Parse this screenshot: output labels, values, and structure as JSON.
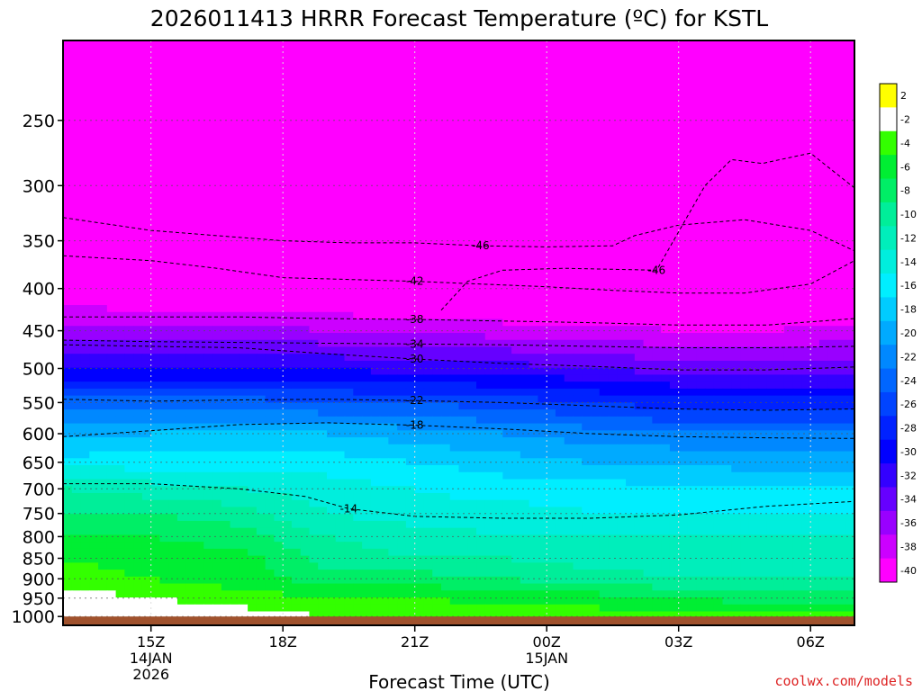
{
  "chart_data": {
    "type": "heatmap",
    "title": "2026011413 HRRR Forecast Temperature (ºC) for KSTL",
    "xlabel": "Forecast Time (UTC)",
    "ylabel": "",
    "credit": "coolwx.com/models",
    "x_ticks": [
      {
        "label": "15Z",
        "sub": [
          "14JAN",
          "2026"
        ]
      },
      {
        "label": "18Z",
        "sub": []
      },
      {
        "label": "21Z",
        "sub": []
      },
      {
        "label": "00Z",
        "sub": [
          "15JAN"
        ]
      },
      {
        "label": "03Z",
        "sub": []
      },
      {
        "label": "06Z",
        "sub": []
      }
    ],
    "x_range_hours": [
      13,
      31
    ],
    "x_tick_hours": [
      15,
      18,
      21,
      24,
      27,
      30
    ],
    "y_ticks": [
      250,
      300,
      350,
      400,
      450,
      500,
      550,
      600,
      650,
      700,
      750,
      800,
      850,
      900,
      950,
      1000
    ],
    "y_range_hpa": [
      200,
      1025
    ],
    "y_scale": "log-pressure",
    "grid": true,
    "colorbar": {
      "labels": [
        "2",
        "-2",
        "-4",
        "-6",
        "-8",
        "-10",
        "-12",
        "-14",
        "-16",
        "-18",
        "-20",
        "-22",
        "-24",
        "-26",
        "-28",
        "-30",
        "-32",
        "-34",
        "-36",
        "-38",
        "-40"
      ],
      "colors": [
        "#ffff00",
        "#ffffff",
        "#33ff00",
        "#00ee33",
        "#00ee66",
        "#00ee99",
        "#00eebb",
        "#00eedd",
        "#00eeff",
        "#00ccff",
        "#00aaff",
        "#0088ff",
        "#0066ff",
        "#0044ff",
        "#0022ff",
        "#0000ff",
        "#3300ff",
        "#6600ff",
        "#9900ff",
        "#cc00ff",
        "#ff00ff"
      ]
    },
    "temperature_levels_hpa": [
      250,
      300,
      350,
      400,
      450,
      500,
      550,
      600,
      650,
      700,
      750,
      800,
      850,
      900,
      950,
      1000
    ],
    "temperature_hours": [
      13,
      15,
      17,
      19,
      21,
      23,
      25,
      27,
      29,
      31
    ],
    "temperature_c": [
      [
        -50,
        -50,
        -51,
        -50,
        -50,
        -49,
        -48,
        -47,
        -47,
        -48
      ],
      [
        -50,
        -49,
        -49,
        -49,
        -48,
        -48,
        -47,
        -45,
        -45,
        -46
      ],
      [
        -45,
        -45,
        -45,
        -46,
        -46,
        -46,
        -47,
        -47,
        -47,
        -46
      ],
      [
        -40,
        -41,
        -41,
        -41,
        -42,
        -42,
        -43,
        -43,
        -43,
        -42
      ],
      [
        -35,
        -35,
        -35,
        -36,
        -36,
        -37,
        -37,
        -38,
        -38,
        -37
      ],
      [
        -30,
        -30,
        -30,
        -30,
        -31,
        -31,
        -32,
        -33,
        -33,
        -33
      ],
      [
        -23,
        -23,
        -23,
        -24,
        -24,
        -25,
        -26,
        -27,
        -27,
        -27
      ],
      [
        -19,
        -18,
        -18,
        -18,
        -19,
        -20,
        -21,
        -22,
        -22,
        -22
      ],
      [
        -15,
        -15,
        -15,
        -15,
        -16,
        -17,
        -18,
        -18,
        -19,
        -19
      ],
      [
        -10,
        -11,
        -12,
        -13,
        -14,
        -15,
        -15,
        -16,
        -16,
        -16
      ],
      [
        -8,
        -8,
        -9,
        -12,
        -13,
        -13,
        -14,
        -14,
        -14,
        -14
      ],
      [
        -6,
        -6,
        -7,
        -10,
        -11,
        -12,
        -12,
        -12,
        -12,
        -12
      ],
      [
        -4,
        -5,
        -5,
        -9,
        -10,
        -10,
        -11,
        -11,
        -11,
        -11
      ],
      [
        -3,
        -4,
        -5,
        -7,
        -7,
        -8,
        -9,
        -10,
        -10,
        -10
      ],
      [
        -1,
        -2,
        -3,
        -4,
        -4,
        -5,
        -5,
        -6,
        -7,
        -7
      ],
      [
        2,
        0,
        -1,
        -2,
        -2,
        -2,
        -3,
        -3,
        -3,
        -3
      ]
    ],
    "contour_labels": [
      "-46",
      "-46",
      "-42",
      "-38",
      "-34",
      "-30",
      "-22",
      "-18",
      "-14"
    ],
    "contour_lines": [
      {
        "value": -46,
        "label_index": 0,
        "hours": [
          21.6,
          22.2,
          23.0,
          24.4,
          26.5,
          27.6,
          28.2,
          28.9,
          30.0,
          31.0
        ],
        "hpa": [
          425,
          392,
          380,
          378,
          380,
          300,
          279,
          282,
          274,
          302
        ]
      },
      {
        "value": -46,
        "label_index": 1,
        "hours": [
          13,
          15,
          16.5,
          18,
          19.5,
          21,
          22.5,
          24,
          25.5,
          26,
          27,
          28.5,
          30,
          31
        ],
        "hpa": [
          328,
          340,
          345,
          350,
          352,
          352,
          355,
          356,
          355,
          345,
          335,
          330,
          340,
          360
        ]
      },
      {
        "value": -42,
        "label_index": 2,
        "hours": [
          13,
          15,
          16.5,
          18,
          19.5,
          21,
          22.5,
          24,
          25.5,
          27,
          28.5,
          30,
          31
        ],
        "hpa": [
          365,
          370,
          378,
          388,
          390,
          392,
          395,
          398,
          402,
          405,
          405,
          395,
          370
        ]
      },
      {
        "value": -38,
        "label_index": 3,
        "hours": [
          13,
          15,
          17,
          19,
          21,
          23,
          25,
          27,
          29,
          31
        ],
        "hpa": [
          433,
          433,
          433,
          435,
          436,
          438,
          440,
          443,
          443,
          435
        ]
      },
      {
        "value": -34,
        "label_index": 4,
        "hours": [
          13,
          15,
          17,
          19,
          21,
          23,
          25,
          27,
          29,
          31
        ],
        "hpa": [
          462,
          464,
          465,
          466,
          467,
          468,
          470,
          472,
          472,
          470
        ]
      },
      {
        "value": -30,
        "label_index": 5,
        "hours": [
          13,
          15,
          17,
          19,
          21,
          23,
          25,
          27,
          29,
          31
        ],
        "hpa": [
          468,
          470,
          472,
          480,
          487,
          493,
          497,
          502,
          502,
          498
        ]
      },
      {
        "value": -22,
        "label_index": 6,
        "hours": [
          13,
          15,
          17,
          19,
          21,
          23,
          25,
          27,
          29,
          31
        ],
        "hpa": [
          545,
          548,
          546,
          545,
          547,
          550,
          555,
          560,
          562,
          560
        ]
      },
      {
        "value": -18,
        "label_index": 7,
        "hours": [
          13,
          15,
          17,
          19,
          21,
          23,
          25,
          27,
          29,
          31
        ],
        "hpa": [
          605,
          595,
          585,
          582,
          586,
          592,
          600,
          605,
          607,
          608
        ]
      },
      {
        "value": -14,
        "label_index": 8,
        "hours": [
          13,
          15,
          17,
          18.5,
          19.5,
          21,
          23,
          25,
          27,
          29,
          31
        ],
        "hpa": [
          690,
          690,
          700,
          715,
          740,
          756,
          760,
          760,
          753,
          735,
          725
        ]
      }
    ],
    "surface_band_color": "#a0522d"
  }
}
